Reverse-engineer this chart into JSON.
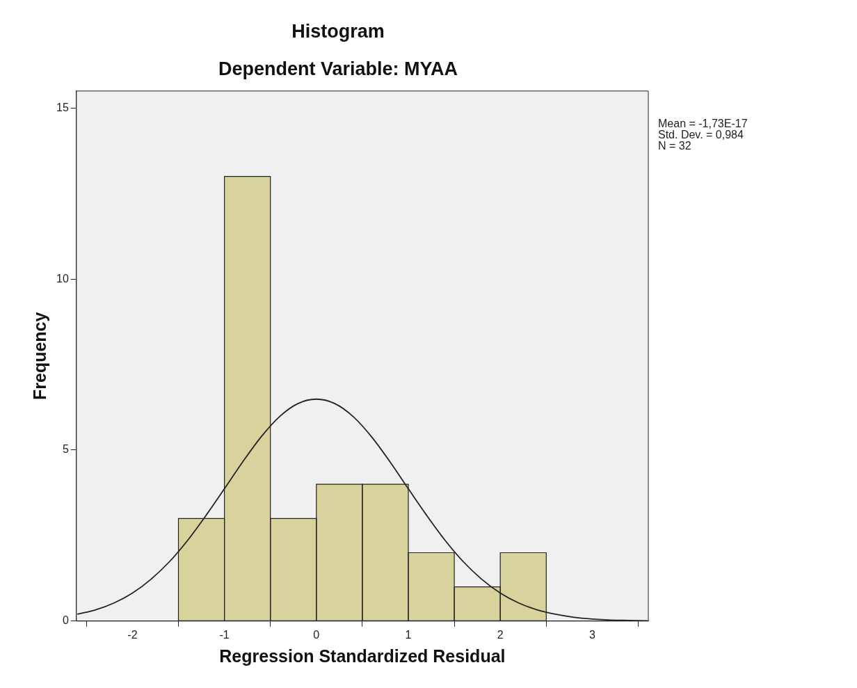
{
  "chart_data": {
    "type": "histogram",
    "title": "Histogram",
    "subtitle": "Dependent Variable: MYAA",
    "xlabel": "Regression Standardized Residual",
    "ylabel": "Frequency",
    "bins": [
      -1.5,
      -1,
      -0.5,
      0,
      0.5,
      1,
      1.5,
      2,
      2.5
    ],
    "values": [
      3,
      13,
      3,
      4,
      4,
      2,
      1,
      2
    ],
    "color": "#d8d39c",
    "series": [
      {
        "type": "line",
        "color": "#222222",
        "x": [
          -2.6,
          -2.4,
          -2.2,
          -2,
          -1.8,
          -1.6,
          -1.4,
          -1.2,
          -1,
          -0.8,
          -0.6,
          -0.4,
          -0.2,
          0,
          0.2,
          0.4,
          0.6,
          0.8,
          1,
          1.2,
          1.4,
          1.6,
          1.8,
          2,
          2.2,
          2.4,
          2.6,
          2.8,
          3,
          3.2,
          3.4,
          3.6
        ],
        "values": [
          0.2,
          0.33,
          0.53,
          0.82,
          1.22,
          1.73,
          2.36,
          3.09,
          3.87,
          4.66,
          5.39,
          5.98,
          6.36,
          6.49,
          6.36,
          5.98,
          5.39,
          4.66,
          3.87,
          3.09,
          2.36,
          1.73,
          1.22,
          0.82,
          0.53,
          0.33,
          0.2,
          0.11,
          0.06,
          0.03,
          0.02,
          0.01
        ]
      }
    ],
    "xlim": [
      -2.61,
      3.61
    ],
    "xticks": [
      -2,
      -1,
      0,
      1,
      2,
      3
    ],
    "ylim": [
      0,
      15.5
    ],
    "yticks": [
      0,
      5,
      10,
      15
    ],
    "grid": false,
    "legend": false,
    "marker": "none",
    "annotations": [
      "Mean = -1,73E-17",
      "Std. Dev. = 0,984",
      "N = 32"
    ]
  }
}
